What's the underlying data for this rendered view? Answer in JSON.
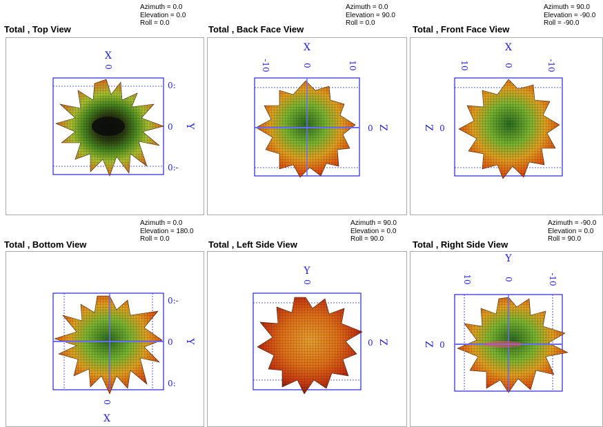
{
  "colors": {
    "axis": "#2222dd",
    "frame": "#a9a9a9",
    "background": "#ffffff"
  },
  "views": [
    {
      "id": "top",
      "title": "Total , Top View",
      "azimuth": "Azimuth = 0.0",
      "elevation": "Elevation = 0.0",
      "roll": "Roll = 0.0",
      "top_label": "X",
      "top_tick": "0",
      "side_label": "Y",
      "side_ticks": [
        "0:",
        "0",
        "0:-"
      ]
    },
    {
      "id": "back",
      "title": "Total , Back Face View",
      "azimuth": "Azimuth = 0.0",
      "elevation": "Elevation = 90.0",
      "roll": "Roll = 0.0",
      "top_label": "X",
      "top_ticks": [
        "-10",
        "0",
        "10"
      ],
      "side_label": "Z",
      "side_tick": "0"
    },
    {
      "id": "front",
      "title": "Total , Front Face View",
      "azimuth": "Azimuth = 90.0",
      "elevation": "Elevation = -90.0",
      "roll": "Roll = -90.0",
      "top_label": "X",
      "top_ticks": [
        "10",
        "0",
        "-10"
      ],
      "side_label": "Z",
      "side_tick": "0"
    },
    {
      "id": "bottom",
      "title": "Total , Bottom View",
      "azimuth": "Azimuth = 0.0",
      "elevation": "Elevation = 180.0",
      "roll": "Roll = 0.0",
      "bottom_label": "X",
      "bottom_tick": "0",
      "side_label": "Y",
      "side_ticks": [
        "0:-",
        "0",
        "0:"
      ]
    },
    {
      "id": "left",
      "title": "Total , Left Side View",
      "azimuth": "Azimuth = 90.0",
      "elevation": "Elevation = 0.0",
      "roll": "Roll = 90.0",
      "top_label": "Y",
      "top_tick": "0",
      "side_label": "Z",
      "side_tick": "0"
    },
    {
      "id": "right",
      "title": "Total , Right Side View",
      "azimuth": "Azimuth = -90.0",
      "elevation": "Elevation = 0.0",
      "roll": "Roll = 90.0",
      "top_label": "Y",
      "top_ticks": [
        "10",
        "0",
        "-10"
      ],
      "side_label": "Z",
      "side_tick": "0"
    }
  ]
}
